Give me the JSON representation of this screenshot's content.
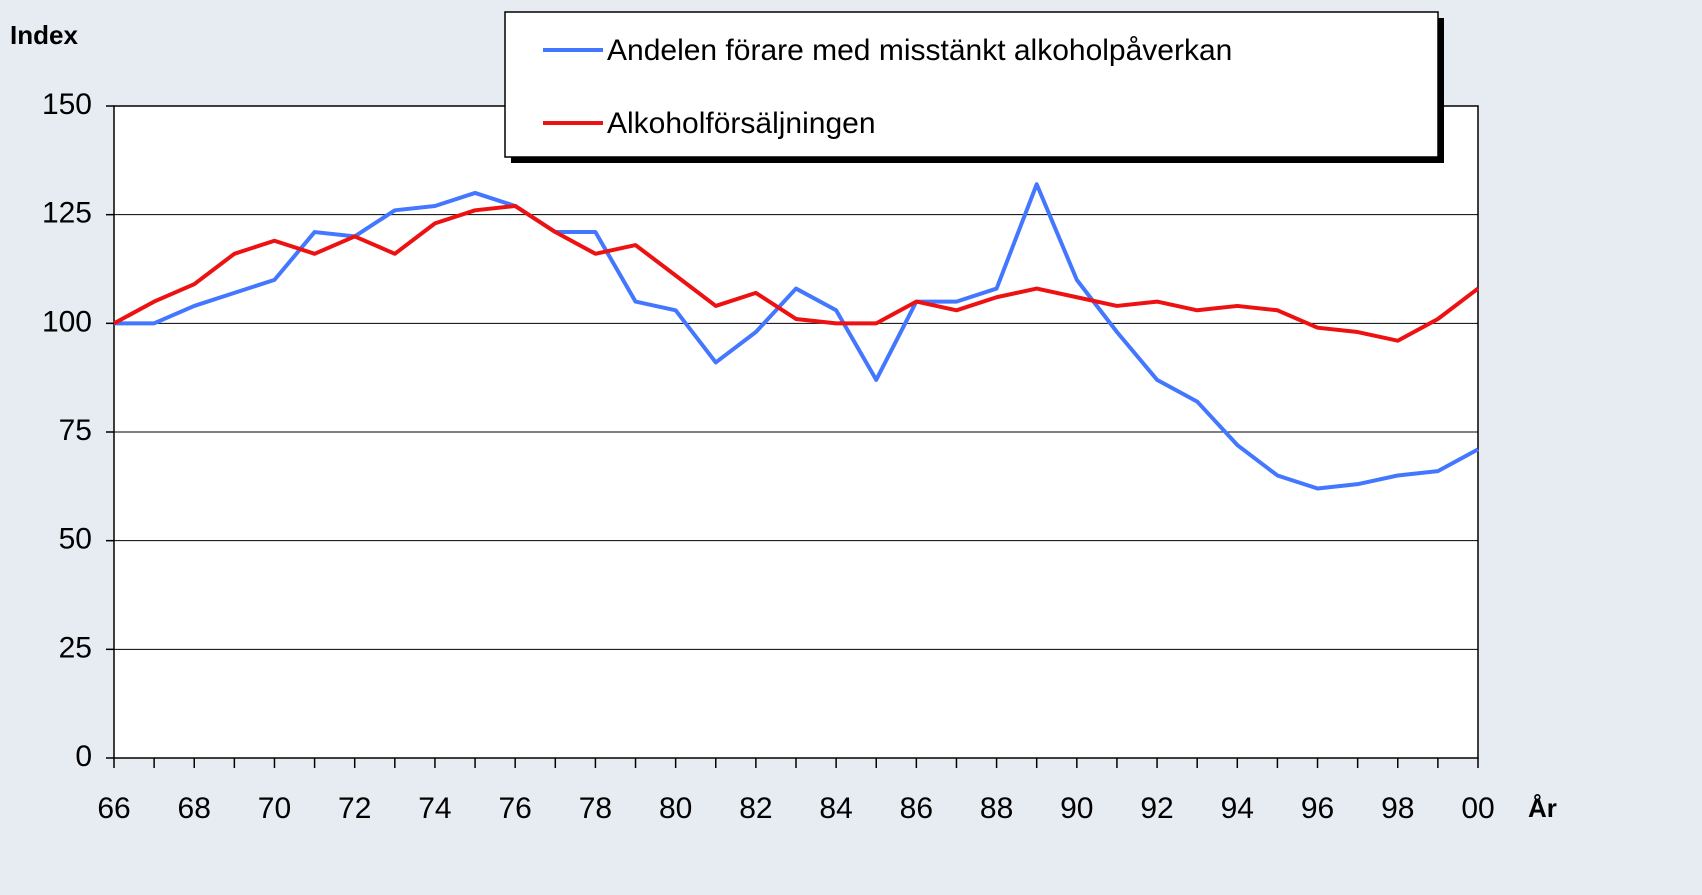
{
  "chart_data": {
    "type": "line",
    "y_label": "Index",
    "x_label": "År",
    "categories": [
      "66",
      null,
      "68",
      null,
      "70",
      null,
      "72",
      null,
      "74",
      null,
      "76",
      null,
      "78",
      null,
      "80",
      null,
      "82",
      null,
      "84",
      null,
      "86",
      null,
      "88",
      null,
      "90",
      null,
      "92",
      null,
      "94",
      null,
      "96",
      null,
      "98",
      null,
      "00"
    ],
    "series": [
      {
        "name": "Andelen förare med misstänkt alkoholpåverkan",
        "color": "#4477ff",
        "values": [
          100,
          100,
          104,
          107,
          110,
          121,
          120,
          126,
          127,
          130,
          127,
          121,
          121,
          105,
          103,
          91,
          98,
          108,
          103,
          87,
          105,
          105,
          108,
          132,
          110,
          98,
          87,
          82,
          72,
          65,
          62,
          63,
          65,
          66,
          71
        ]
      },
      {
        "name": "Alkoholförsäljningen",
        "color": "#ee1111",
        "values": [
          100,
          105,
          109,
          116,
          119,
          116,
          120,
          116,
          123,
          126,
          127,
          121,
          116,
          118,
          111,
          104,
          107,
          101,
          100,
          100,
          105,
          103,
          106,
          108,
          106,
          104,
          105,
          103,
          104,
          103,
          99,
          98,
          96,
          101,
          108
        ]
      }
    ],
    "ylim": [
      0,
      150
    ],
    "yticks": [
      0,
      25,
      50,
      75,
      100,
      125,
      150
    ],
    "grid": true,
    "legend": "top"
  }
}
